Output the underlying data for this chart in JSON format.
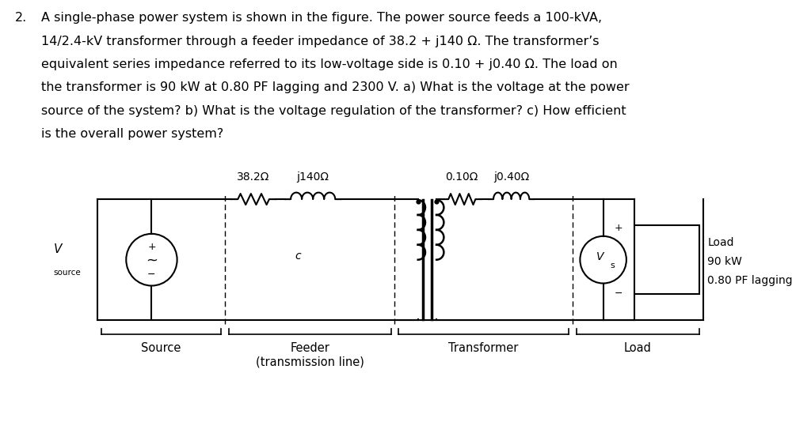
{
  "background_color": "#ffffff",
  "text_color": "#000000",
  "title_number": "2.",
  "problem_text": [
    "A single-phase power system is shown in the figure. The power source feeds a 100-kVA,",
    "14/2.4-kV transformer through a feeder impedance of 38.2 + j140 Ω. The transformer’s",
    "equivalent series impedance referred to its low-voltage side is 0.10 + j0.40 Ω. The load on",
    "the transformer is 90 kW at 0.80 PF lagging and 2300 V. a) What is the voltage at the power",
    "source of the system? b) What is the voltage regulation of the transformer? c) How efficient",
    "is the overall power system?"
  ],
  "circuit": {
    "feeder_label_r": "38.2Ω",
    "feeder_label_l": "j140Ω",
    "transformer_label_r": "0.10Ω",
    "transformer_label_l": "j0.40Ω",
    "source_label": "V",
    "source_subscript": "source",
    "vs_label": "V",
    "vs_subscript": "s",
    "load_text": [
      "Load",
      "90 kW",
      "0.80 PF lagging"
    ],
    "section_labels": [
      "Source",
      "Feeder\n(transmission line)",
      "Transformer",
      "Load"
    ]
  }
}
